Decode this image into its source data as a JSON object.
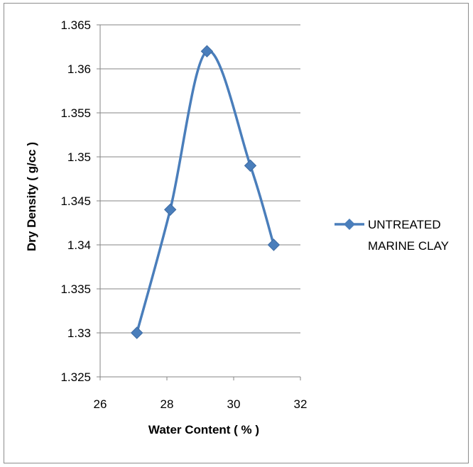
{
  "chart_data": {
    "type": "scatter",
    "title": "",
    "xlabel": "Water Content ( % )",
    "ylabel": "Dry Density ( g/cc )",
    "xlim": [
      26,
      32
    ],
    "ylim": [
      1.325,
      1.365
    ],
    "x_ticks": [
      "26",
      "28",
      "30",
      "32"
    ],
    "y_ticks": [
      "1.325",
      "1.33",
      "1.335",
      "1.34",
      "1.345",
      "1.35",
      "1.355",
      "1.36",
      "1.365"
    ],
    "x_tick_values": [
      26,
      28,
      30,
      32
    ],
    "y_tick_values": [
      1.325,
      1.33,
      1.335,
      1.34,
      1.345,
      1.35,
      1.355,
      1.36,
      1.365
    ],
    "grid": "horizontal",
    "smoothed": true,
    "legend_position": "right",
    "series": [
      {
        "name": "UNTREATED MARINE CLAY",
        "legend_lines": [
          "UNTREATED",
          "MARINE CLAY"
        ],
        "color": "#4a7ebb",
        "marker": "diamond",
        "x": [
          27.1,
          28.1,
          29.2,
          30.5,
          31.2
        ],
        "y": [
          1.33,
          1.344,
          1.362,
          1.349,
          1.34
        ]
      }
    ]
  }
}
